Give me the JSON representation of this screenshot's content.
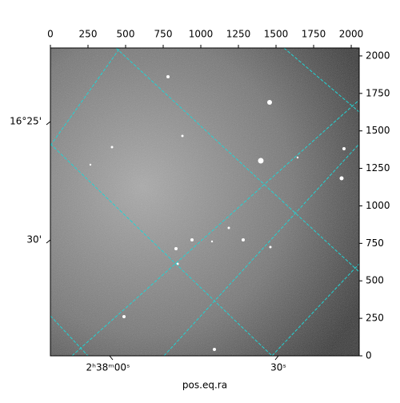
{
  "chart_data": {
    "type": "image",
    "xlabel": "pos.eq.ra",
    "xlim": [
      0,
      2053
    ],
    "xticks": [
      0,
      250,
      500,
      750,
      1000,
      1250,
      1500,
      1750,
      2000
    ],
    "ylim": [
      0,
      2053
    ],
    "yticks": [
      0,
      250,
      500,
      750,
      1000,
      1250,
      1500,
      1750,
      2000
    ],
    "ra_ticks": [
      "2ʰ38ᵐ00ˢ",
      "30ˢ"
    ],
    "dec_ticks": [
      "16°25'",
      "30'"
    ]
  }
}
